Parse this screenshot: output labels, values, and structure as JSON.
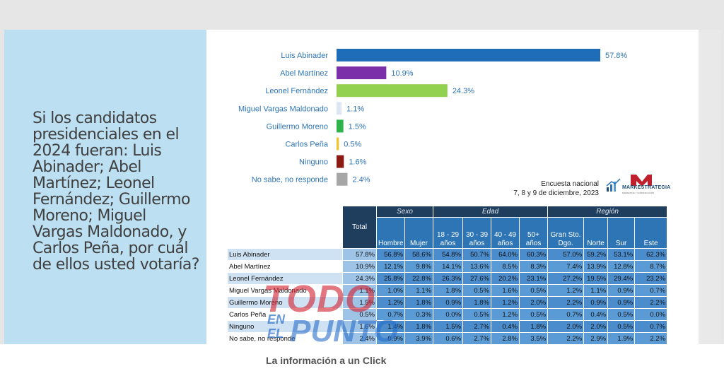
{
  "question": "Si los candidatos presidenciales en el 2024 fueran: Luis Abinader; Abel Martínez; Leonel Fernández; Guillermo Moreno; Miguel Vargas Maldonado, y Carlos Peña, por cuál de ellos usted votaría?",
  "chart_data": {
    "type": "bar",
    "orientation": "horizontal",
    "categories": [
      "Luis Abinader",
      "Abel Martínez",
      "Leonel Fernández",
      "Miguel Vargas Maldonado",
      "Guillermo Moreno",
      "Carlos Peña",
      "Ninguno",
      "No sabe, no responde"
    ],
    "values": [
      57.8,
      10.9,
      24.3,
      1.1,
      1.5,
      0.5,
      1.6,
      2.4
    ],
    "value_labels": [
      "57.8%",
      "10.9%",
      "24.3%",
      "1.1%",
      "1.5%",
      "0.5%",
      "1.6%",
      "2.4%"
    ],
    "colors": [
      "#1f6cb8",
      "#7b2fa8",
      "#92d050",
      "#dde7f1",
      "#2fb34a",
      "#f2c12e",
      "#8b1a12",
      "#a6a6a6"
    ],
    "xlim": [
      0,
      60
    ],
    "grid": false,
    "legend": "none"
  },
  "survey_note": {
    "line1": "Encuesta nacional",
    "line2": "7, 8 y 9 de diciembre, 2023"
  },
  "logo": {
    "name": "MARKESTRATEGIA",
    "subtitle": "MARKETING Y COMUNICACIÓN",
    "color_primary": "#c0202e",
    "color_secondary": "#1f4e79"
  },
  "table": {
    "total_header": "Total",
    "groups": [
      "Sexo",
      "Edad",
      "Región"
    ],
    "subheaders": [
      "Hombre",
      "Mujer",
      "18 - 29 años",
      "30 - 39 años",
      "40 - 49 años",
      "50+ años",
      "Gran Sto. Dgo.",
      "Norte",
      "Sur",
      "Este"
    ],
    "rows": [
      {
        "name": "Luis Abinader",
        "total": "57.8%",
        "values": [
          "56.8%",
          "58.6%",
          "54.8%",
          "50.7%",
          "64.0%",
          "60.3%",
          "57.0%",
          "59.2%",
          "53.1%",
          "62.3%"
        ]
      },
      {
        "name": "Abel Martínez",
        "total": "10.9%",
        "values": [
          "12.1%",
          "9.8%",
          "14.1%",
          "13.6%",
          "8.5%",
          "8.3%",
          "7.4%",
          "13.9%",
          "12.8%",
          "8.7%"
        ]
      },
      {
        "name": "Leonel Fernández",
        "total": "24.3%",
        "values": [
          "25.8%",
          "22.8%",
          "26.3%",
          "27.6%",
          "20.2%",
          "23.1%",
          "27.2%",
          "19.5%",
          "29.4%",
          "23.2%"
        ]
      },
      {
        "name": "Miguel Vargas Maldonado",
        "total": "1.1%",
        "values": [
          "1.0%",
          "1.1%",
          "1.8%",
          "0.5%",
          "1.6%",
          "0.5%",
          "1.2%",
          "1.1%",
          "0.9%",
          "0.7%"
        ]
      },
      {
        "name": "Guillermo Moreno",
        "total": "1.5%",
        "values": [
          "1.2%",
          "1.8%",
          "0.9%",
          "1.8%",
          "1.2%",
          "2.0%",
          "2.2%",
          "0.9%",
          "0.9%",
          "2.2%"
        ]
      },
      {
        "name": "Carlos Peña",
        "total": "0.5%",
        "values": [
          "0.7%",
          "0.3%",
          "0.0%",
          "0.5%",
          "1.2%",
          "0.5%",
          "0.7%",
          "0.4%",
          "0.5%",
          "0.0%"
        ]
      },
      {
        "name": "Ninguno",
        "total": "1.6%",
        "values": [
          "1.4%",
          "1.8%",
          "1.5%",
          "2.7%",
          "0.4%",
          "1.8%",
          "2.0%",
          "2.0%",
          "0.5%",
          "0.7%"
        ]
      },
      {
        "name": "No sabe, no responde",
        "total": "2.4%",
        "values": [
          "0.9%",
          "3.9%",
          "0.6%",
          "2.7%",
          "2.8%",
          "3.5%",
          "2.2%",
          "2.9%",
          "1.9%",
          "2.2%"
        ]
      }
    ]
  },
  "watermark": {
    "line1": "TODO",
    "en": "EN",
    "el": "EL",
    "punto": "PUNTO"
  },
  "tagline": "La información a un Click"
}
